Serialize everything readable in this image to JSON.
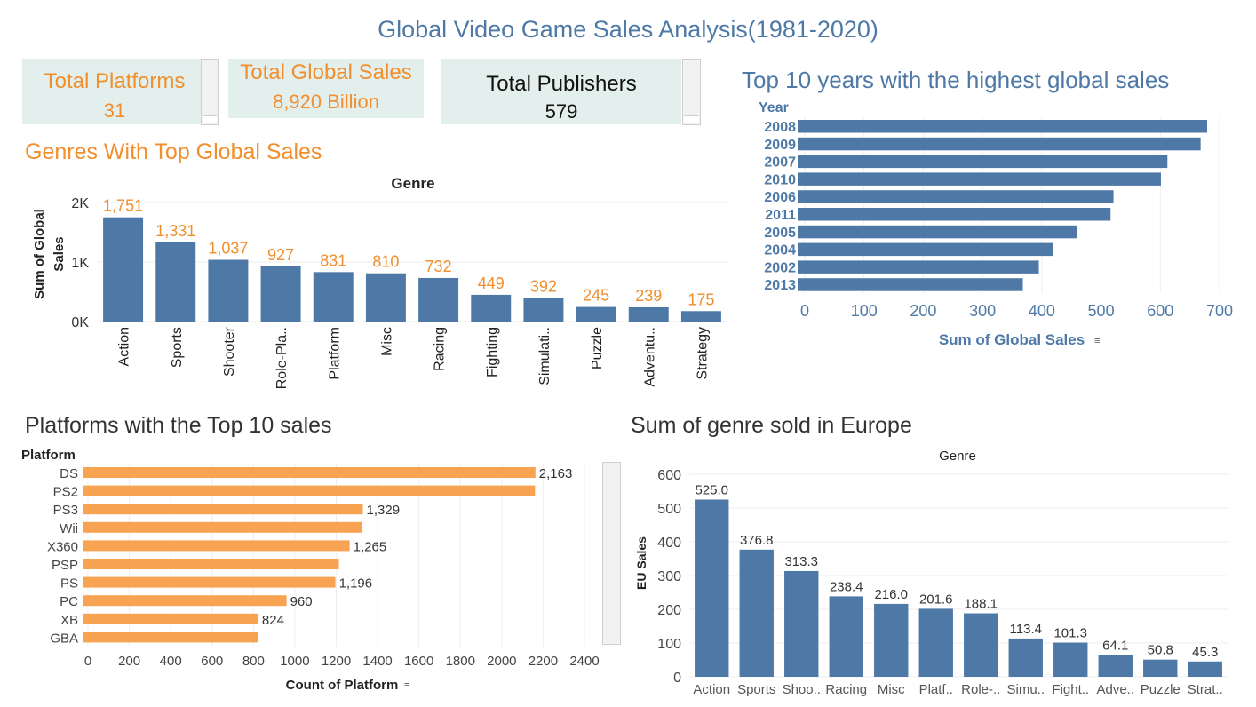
{
  "dashboard": {
    "title": "Global Video Game Sales Analysis(1981-2020)",
    "kpis": [
      {
        "label": "Total Platforms",
        "value": "31"
      },
      {
        "label": "Total Global Sales",
        "value": "8,920 Billion"
      },
      {
        "label": "Total Publishers",
        "value": "579"
      }
    ]
  },
  "colors": {
    "steel_blue": "#4e79a7",
    "orange": "#f28e2b",
    "bar_orange": "#f7a351",
    "kpi_bg": "#e3efec"
  },
  "chart_titles": {
    "genres": "Genres With Top Global Sales",
    "years": "Top 10 years with the highest global sales",
    "platforms": "Platforms with the Top 10 sales",
    "europe": "Sum of genre sold in Europe"
  },
  "chart_data": [
    {
      "type": "bar",
      "header": "Genre",
      "ylabel": "Sum of Global Sales",
      "ylim": [
        0,
        2000
      ],
      "yticks": [
        "0K",
        "1K",
        "2K"
      ],
      "categories": [
        "Action",
        "Sports",
        "Shooter",
        "Role-Pla..",
        "Platform",
        "Misc",
        "Racing",
        "Fighting",
        "Simulati..",
        "Puzzle",
        "Adventu..",
        "Strategy"
      ],
      "values": [
        1751,
        1331,
        1037,
        927,
        831,
        810,
        732,
        449,
        392,
        245,
        239,
        175
      ],
      "labels": [
        "1,751",
        "1,331",
        "1,037",
        "927",
        "831",
        "810",
        "732",
        "449",
        "392",
        "245",
        "239",
        "175"
      ]
    },
    {
      "type": "bar",
      "orientation": "horizontal",
      "row_header": "Year",
      "xlabel": "Sum of Global Sales",
      "xlim": [
        0,
        700
      ],
      "xticks": [
        "0",
        "100",
        "200",
        "300",
        "400",
        "500",
        "600",
        "700"
      ],
      "categories": [
        "2008",
        "2009",
        "2007",
        "2010",
        "2006",
        "2011",
        "2005",
        "2004",
        "2002",
        "2013"
      ],
      "values": [
        679,
        668,
        612,
        601,
        521,
        516,
        459,
        419,
        395,
        368
      ]
    },
    {
      "type": "bar",
      "orientation": "horizontal",
      "row_header": "Platform",
      "xlabel": "Count of Platform",
      "xlim": [
        0,
        2400
      ],
      "xticks": [
        "0",
        "200",
        "400",
        "600",
        "800",
        "1000",
        "1200",
        "1400",
        "1600",
        "1800",
        "2000",
        "2200",
        "2400"
      ],
      "categories": [
        "DS",
        "PS2",
        "PS3",
        "Wii",
        "X360",
        "PSP",
        "PS",
        "PC",
        "XB",
        "GBA"
      ],
      "values": [
        2163,
        2161,
        1329,
        1325,
        1265,
        1213,
        1196,
        960,
        824,
        822
      ],
      "labels": [
        "2,163",
        "",
        "1,329",
        "",
        "1,265",
        "",
        "1,196",
        "960",
        "824",
        ""
      ]
    },
    {
      "type": "bar",
      "header": "Genre",
      "ylabel": "EU Sales",
      "ylim": [
        0,
        600
      ],
      "yticks": [
        "0",
        "100",
        "200",
        "300",
        "400",
        "500",
        "600"
      ],
      "categories": [
        "Action",
        "Sports",
        "Shoo..",
        "Racing",
        "Misc",
        "Platf..",
        "Role-..",
        "Simu..",
        "Fight..",
        "Adve..",
        "Puzzle",
        "Strat.."
      ],
      "values": [
        525.0,
        376.8,
        313.3,
        238.4,
        216.0,
        201.6,
        188.1,
        113.4,
        101.3,
        64.1,
        50.8,
        45.3
      ],
      "labels": [
        "525.0",
        "376.8",
        "313.3",
        "238.4",
        "216.0",
        "201.6",
        "188.1",
        "113.4",
        "101.3",
        "64.1",
        "50.8",
        "45.3"
      ]
    }
  ]
}
